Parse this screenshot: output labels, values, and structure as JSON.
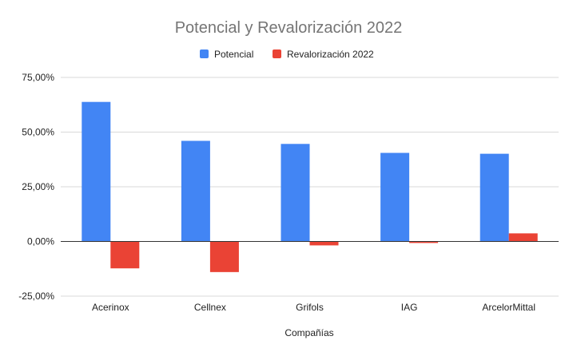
{
  "chart_data": {
    "type": "bar",
    "title": "Potencial y Revalorización 2022",
    "xlabel": "Compañías",
    "ylabel": "",
    "categories": [
      "Acerinox",
      "Cellnex",
      "Grifols",
      "IAG",
      "ArcelorMittal"
    ],
    "series": [
      {
        "name": "Potencial",
        "color": "#4285f4",
        "values": [
          63.8,
          46.0,
          44.6,
          40.5,
          40.1
        ]
      },
      {
        "name": "Revalorización 2022",
        "color": "#ea4335",
        "values": [
          -12.3,
          -14.0,
          -1.8,
          -0.7,
          3.7
        ]
      }
    ],
    "ylim": [
      -25,
      75
    ],
    "yticks": [
      75,
      50,
      25,
      0,
      -25
    ],
    "ytick_labels": [
      "75,00%",
      "50,00%",
      "25,00%",
      "0,00%",
      "-25,00%"
    ],
    "grid": true,
    "legend_position": "top-center"
  }
}
